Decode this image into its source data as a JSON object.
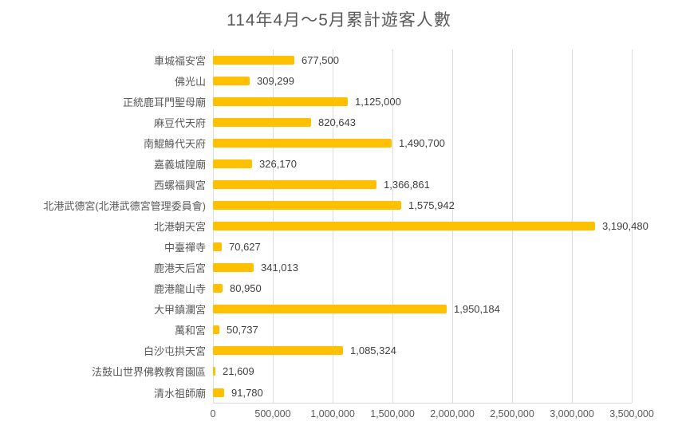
{
  "chart_data": {
    "type": "bar",
    "orientation": "horizontal",
    "title": "114年4月～5月累計遊客人數",
    "xlabel": "",
    "ylabel": "",
    "categories": [
      "車城福安宮",
      "佛光山",
      "正統鹿耳門聖母廟",
      "麻豆代天府",
      "南鯤鯓代天府",
      "嘉義城隍廟",
      "西螺福興宮",
      "北港武德宮(北港武德宮管理委員會)",
      "北港朝天宮",
      "中臺禪寺",
      "鹿港天后宮",
      "鹿港龍山寺",
      "大甲鎮瀾宮",
      "萬和宮",
      "白沙屯拱天宮",
      "法鼓山世界佛教教育園區",
      "清水祖師廟"
    ],
    "values": [
      677500,
      309299,
      1125000,
      820643,
      1490700,
      326170,
      1366861,
      1575942,
      3190480,
      70627,
      341013,
      80950,
      1950184,
      50737,
      1085324,
      21609,
      91780
    ],
    "value_labels": [
      "677,500",
      "309,299",
      "1,125,000",
      "820,643",
      "1,490,700",
      "326,170",
      "1,366,861",
      "1,575,942",
      "3,190,480",
      "70,627",
      "341,013",
      "80,950",
      "1,950,184",
      "50,737",
      "1,085,324",
      "21,609",
      "91,780"
    ],
    "x_tick_labels": [
      "0",
      "500,000",
      "1,000,000",
      "1,500,000",
      "2,000,000",
      "2,500,000",
      "3,000,000",
      "3,500,000"
    ],
    "xlim": [
      0,
      3500000
    ],
    "grid": "vertical-only",
    "legend": "none",
    "colors": {
      "bar": "#FFC000",
      "gridline": "#DCDCDC",
      "axis_line": "#D9D9D9",
      "title": "#595959",
      "category_label": "#595959",
      "value_label": "#3F3F3F",
      "tick_label": "#595959",
      "background": "#FFFFFF"
    }
  }
}
